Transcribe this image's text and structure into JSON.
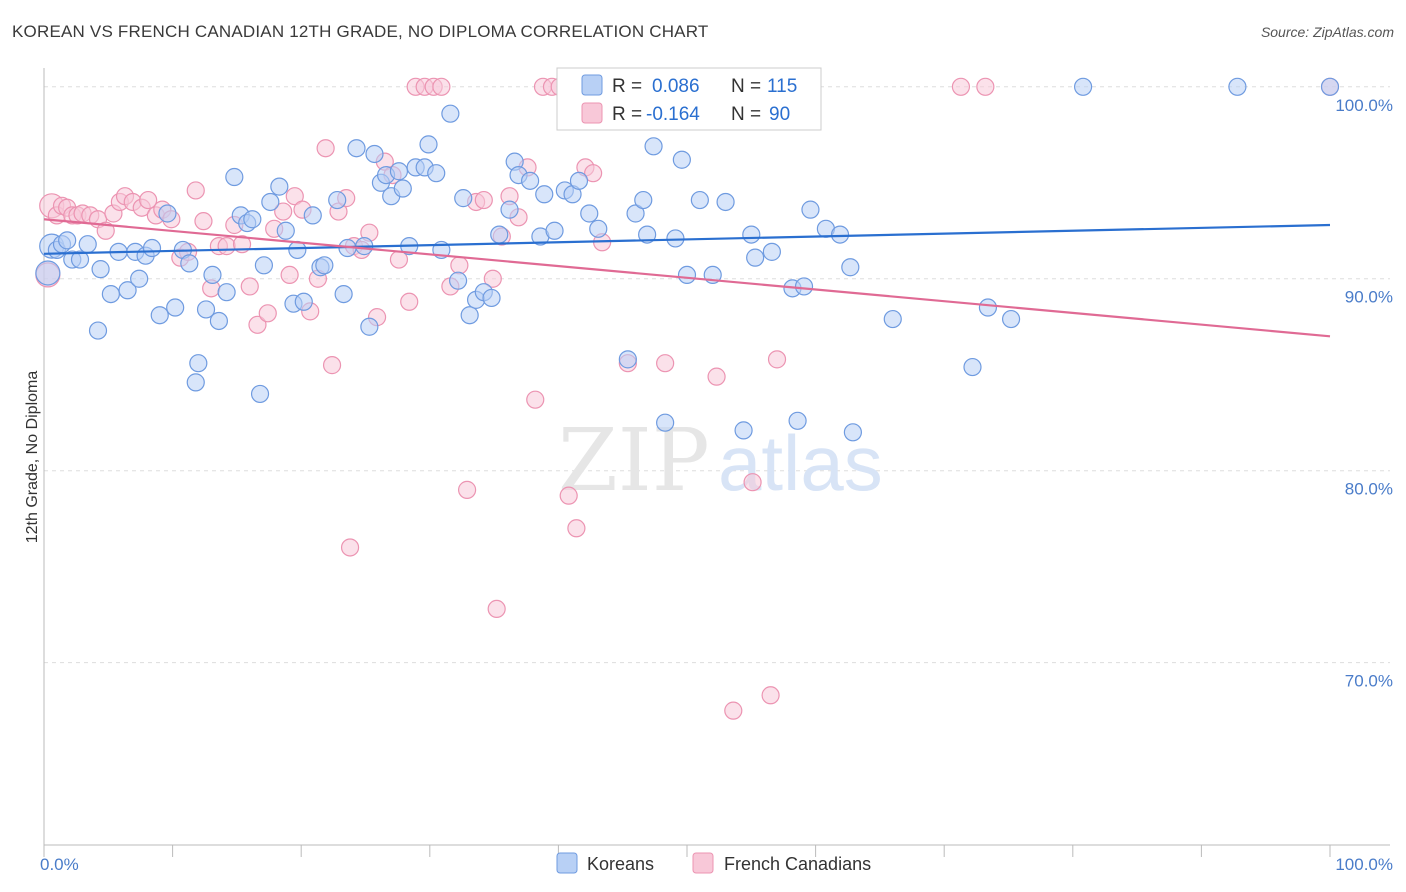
{
  "title": "KOREAN VS FRENCH CANADIAN 12TH GRADE, NO DIPLOMA CORRELATION CHART",
  "source": "Source: ZipAtlas.com",
  "watermark": {
    "zip": "ZIP",
    "atlas": "atlas"
  },
  "colors": {
    "korean_fill": "#b8d0f5",
    "korean_stroke": "#6f9be0",
    "korean_line": "#2a6fd0",
    "french_fill": "#f8c8d8",
    "french_stroke": "#ec94b2",
    "french_line": "#e06a94",
    "tick_text": "#4a7cc9",
    "grid": "#dddddd"
  },
  "stats_legend": {
    "rows": [
      {
        "r_label": "R =",
        "r_value": "0.086",
        "n_label": "N =",
        "n_value": "115"
      },
      {
        "r_label": "R =",
        "r_value": "-0.164",
        "n_label": "N =",
        "n_value": "90"
      }
    ]
  },
  "bottom_legend": [
    "Koreans",
    "French Canadians"
  ],
  "chart_data": {
    "type": "scatter",
    "xlabel": "",
    "ylabel": "12th Grade, No Diploma",
    "xlim": [
      0,
      100
    ],
    "ylim": [
      60.5,
      101.5
    ],
    "x_ticks": [
      {
        "value": 0,
        "label": "0.0%"
      },
      {
        "value": 100,
        "label": "100.0%"
      }
    ],
    "y_ticks": [
      {
        "value": 100,
        "label": "100.0%"
      },
      {
        "value": 90,
        "label": "90.0%"
      },
      {
        "value": 80,
        "label": "80.0%"
      },
      {
        "value": 70,
        "label": "70.0%"
      }
    ],
    "grid": true,
    "legend_position": "top-center",
    "series": [
      {
        "name": "Koreans",
        "r": 0.086,
        "n": 115,
        "trend": {
          "x": [
            0,
            100
          ],
          "y": [
            91.3,
            92.8
          ]
        },
        "points": [
          [
            0.3,
            90.3
          ],
          [
            0.6,
            91.7
          ],
          [
            1.0,
            91.5
          ],
          [
            1.4,
            91.8
          ],
          [
            1.8,
            92.0
          ],
          [
            2.2,
            91.0
          ],
          [
            2.8,
            91.0
          ],
          [
            3.4,
            91.8
          ],
          [
            4.2,
            87.3
          ],
          [
            4.4,
            90.5
          ],
          [
            5.2,
            89.2
          ],
          [
            5.8,
            91.4
          ],
          [
            6.5,
            89.4
          ],
          [
            7.1,
            91.4
          ],
          [
            7.4,
            90.0
          ],
          [
            7.9,
            91.2
          ],
          [
            8.4,
            91.6
          ],
          [
            9.0,
            88.1
          ],
          [
            9.6,
            93.4
          ],
          [
            10.2,
            88.5
          ],
          [
            10.8,
            91.5
          ],
          [
            11.3,
            90.8
          ],
          [
            11.8,
            84.6
          ],
          [
            12.0,
            85.6
          ],
          [
            12.6,
            88.4
          ],
          [
            13.1,
            90.2
          ],
          [
            13.6,
            87.8
          ],
          [
            14.2,
            89.3
          ],
          [
            14.8,
            95.3
          ],
          [
            15.3,
            93.3
          ],
          [
            15.8,
            92.9
          ],
          [
            16.2,
            93.1
          ],
          [
            16.8,
            84.0
          ],
          [
            17.1,
            90.7
          ],
          [
            17.6,
            94.0
          ],
          [
            18.3,
            94.8
          ],
          [
            18.8,
            92.5
          ],
          [
            19.4,
            88.7
          ],
          [
            19.7,
            91.5
          ],
          [
            20.2,
            88.8
          ],
          [
            20.9,
            93.3
          ],
          [
            21.5,
            90.6
          ],
          [
            21.8,
            90.7
          ],
          [
            22.8,
            94.1
          ],
          [
            23.3,
            89.2
          ],
          [
            23.6,
            91.6
          ],
          [
            24.3,
            96.8
          ],
          [
            24.9,
            91.7
          ],
          [
            25.3,
            87.5
          ],
          [
            25.7,
            96.5
          ],
          [
            26.2,
            95.0
          ],
          [
            26.6,
            95.4
          ],
          [
            27.0,
            94.3
          ],
          [
            27.6,
            95.6
          ],
          [
            27.9,
            94.7
          ],
          [
            28.4,
            91.7
          ],
          [
            28.9,
            95.8
          ],
          [
            29.6,
            95.8
          ],
          [
            29.9,
            97.0
          ],
          [
            30.5,
            95.5
          ],
          [
            30.9,
            91.5
          ],
          [
            31.6,
            98.6
          ],
          [
            32.2,
            89.9
          ],
          [
            32.6,
            94.2
          ],
          [
            33.1,
            88.1
          ],
          [
            33.6,
            88.9
          ],
          [
            34.2,
            89.3
          ],
          [
            34.8,
            89.0
          ],
          [
            35.4,
            92.3
          ],
          [
            36.2,
            93.6
          ],
          [
            36.6,
            96.1
          ],
          [
            36.9,
            95.4
          ],
          [
            37.8,
            95.1
          ],
          [
            38.6,
            92.2
          ],
          [
            38.9,
            94.4
          ],
          [
            39.7,
            92.5
          ],
          [
            40.5,
            94.6
          ],
          [
            41.1,
            94.4
          ],
          [
            41.6,
            95.1
          ],
          [
            42.4,
            93.4
          ],
          [
            43.1,
            92.6
          ],
          [
            43.6,
            100.0
          ],
          [
            45.4,
            85.8
          ],
          [
            46.0,
            93.4
          ],
          [
            46.6,
            94.1
          ],
          [
            46.9,
            92.3
          ],
          [
            47.4,
            96.9
          ],
          [
            48.3,
            82.5
          ],
          [
            49.1,
            92.1
          ],
          [
            49.6,
            96.2
          ],
          [
            50.0,
            90.2
          ],
          [
            51.0,
            94.1
          ],
          [
            52.0,
            90.2
          ],
          [
            53.0,
            94.0
          ],
          [
            54.4,
            82.1
          ],
          [
            55.0,
            92.3
          ],
          [
            55.3,
            91.1
          ],
          [
            56.6,
            91.4
          ],
          [
            58.2,
            89.5
          ],
          [
            58.6,
            82.6
          ],
          [
            59.1,
            89.6
          ],
          [
            59.6,
            93.6
          ],
          [
            60.8,
            92.6
          ],
          [
            61.9,
            92.3
          ],
          [
            62.7,
            90.6
          ],
          [
            62.9,
            82.0
          ],
          [
            66.0,
            87.9
          ],
          [
            72.2,
            85.4
          ],
          [
            73.4,
            88.5
          ],
          [
            75.2,
            87.9
          ],
          [
            80.8,
            100.0
          ],
          [
            92.8,
            100.0
          ],
          [
            100.0,
            100.0
          ]
        ]
      },
      {
        "name": "French Canadians",
        "r": -0.164,
        "n": 90,
        "trend": {
          "x": [
            0,
            100
          ],
          "y": [
            93.1,
            87.0
          ]
        },
        "points": [
          [
            0.3,
            90.2
          ],
          [
            0.6,
            93.8
          ],
          [
            1.0,
            93.3
          ],
          [
            1.4,
            93.8
          ],
          [
            1.8,
            93.7
          ],
          [
            2.2,
            93.3
          ],
          [
            2.6,
            93.3
          ],
          [
            3.0,
            93.4
          ],
          [
            3.6,
            93.3
          ],
          [
            4.2,
            93.1
          ],
          [
            4.8,
            92.5
          ],
          [
            5.4,
            93.4
          ],
          [
            5.9,
            94.0
          ],
          [
            6.3,
            94.3
          ],
          [
            6.9,
            94.0
          ],
          [
            7.6,
            93.7
          ],
          [
            8.1,
            94.1
          ],
          [
            8.7,
            93.3
          ],
          [
            9.2,
            93.6
          ],
          [
            9.9,
            93.1
          ],
          [
            10.6,
            91.1
          ],
          [
            11.2,
            91.4
          ],
          [
            11.8,
            94.6
          ],
          [
            12.4,
            93.0
          ],
          [
            13.0,
            89.5
          ],
          [
            13.6,
            91.7
          ],
          [
            14.2,
            91.7
          ],
          [
            14.8,
            92.8
          ],
          [
            15.4,
            91.8
          ],
          [
            16.0,
            89.6
          ],
          [
            16.6,
            87.6
          ],
          [
            17.4,
            88.2
          ],
          [
            17.9,
            92.6
          ],
          [
            18.6,
            93.5
          ],
          [
            19.1,
            90.2
          ],
          [
            19.5,
            94.3
          ],
          [
            20.1,
            93.6
          ],
          [
            20.7,
            88.3
          ],
          [
            21.3,
            90.0
          ],
          [
            21.9,
            96.8
          ],
          [
            22.4,
            85.5
          ],
          [
            22.9,
            93.5
          ],
          [
            23.5,
            94.2
          ],
          [
            24.1,
            91.7
          ],
          [
            24.7,
            91.5
          ],
          [
            25.3,
            92.4
          ],
          [
            25.9,
            88.0
          ],
          [
            26.5,
            96.1
          ],
          [
            27.1,
            95.4
          ],
          [
            27.6,
            91.0
          ],
          [
            28.4,
            88.8
          ],
          [
            28.9,
            100.0
          ],
          [
            29.6,
            100.0
          ],
          [
            30.3,
            100.0
          ],
          [
            30.9,
            100.0
          ],
          [
            31.6,
            89.6
          ],
          [
            32.3,
            90.7
          ],
          [
            32.9,
            79.0
          ],
          [
            33.6,
            94.0
          ],
          [
            34.2,
            94.1
          ],
          [
            34.9,
            90.0
          ],
          [
            35.6,
            92.2
          ],
          [
            36.2,
            94.3
          ],
          [
            36.9,
            93.2
          ],
          [
            37.6,
            95.8
          ],
          [
            38.2,
            83.7
          ],
          [
            38.8,
            100.0
          ],
          [
            39.5,
            100.0
          ],
          [
            40.1,
            100.0
          ],
          [
            40.8,
            78.7
          ],
          [
            41.4,
            77.0
          ],
          [
            42.1,
            95.8
          ],
          [
            42.7,
            95.5
          ],
          [
            43.4,
            91.9
          ],
          [
            44.0,
            100.0
          ],
          [
            45.4,
            85.6
          ],
          [
            46.0,
            100.0
          ],
          [
            46.6,
            100.0
          ],
          [
            47.4,
            100.0
          ],
          [
            48.3,
            85.6
          ],
          [
            52.3,
            84.9
          ],
          [
            53.6,
            67.5
          ],
          [
            55.1,
            79.4
          ],
          [
            56.5,
            68.3
          ],
          [
            57.0,
            85.8
          ],
          [
            71.3,
            100.0
          ],
          [
            73.2,
            100.0
          ],
          [
            100.0,
            100.0
          ],
          [
            23.8,
            76.0
          ],
          [
            35.2,
            72.8
          ]
        ]
      }
    ]
  }
}
